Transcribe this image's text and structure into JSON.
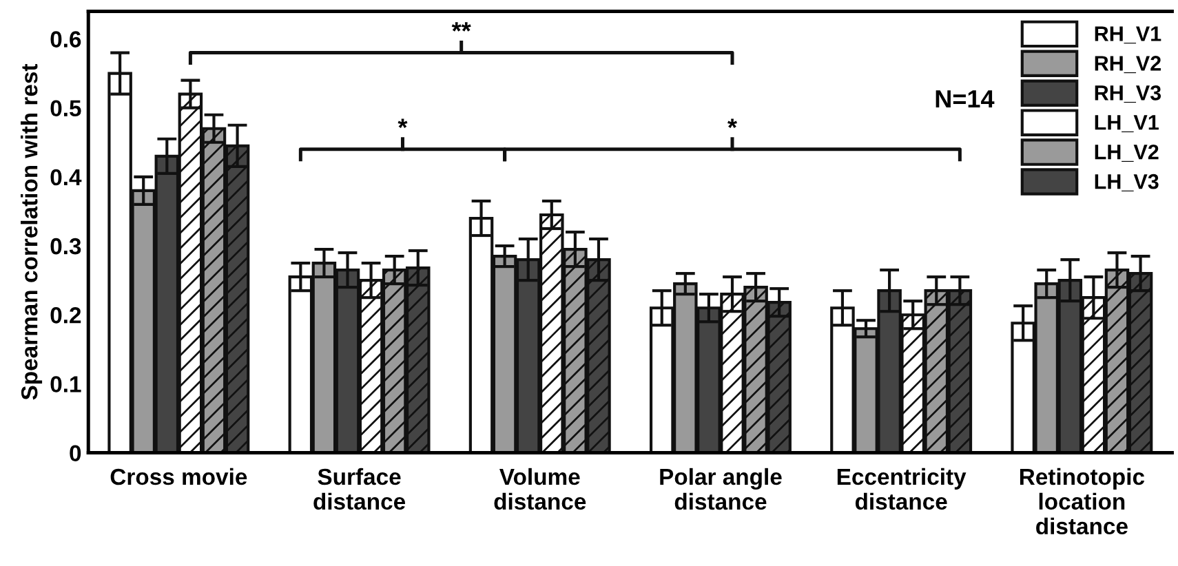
{
  "chart_data": {
    "type": "bar",
    "ylabel": "Spearman correlation with rest",
    "categories": [
      "Cross movie",
      "Surface\ndistance",
      "Volume\ndistance",
      "Polar angle\ndistance",
      "Eccentricity\ndistance",
      "Retinotopic\nlocation\ndistance"
    ],
    "series": [
      {
        "name": "RH_V1",
        "color": "#ffffff",
        "values": [
          0.55,
          0.255,
          0.34,
          0.21,
          0.21,
          0.188
        ],
        "errors": [
          0.03,
          0.02,
          0.025,
          0.025,
          0.025,
          0.025
        ]
      },
      {
        "name": "RH_V2",
        "color": "#9a9a9a",
        "values": [
          0.38,
          0.275,
          0.285,
          0.245,
          0.18,
          0.245
        ],
        "errors": [
          0.02,
          0.02,
          0.015,
          0.015,
          0.012,
          0.02
        ]
      },
      {
        "name": "RH_V3",
        "color": "#444444",
        "values": [
          0.43,
          0.265,
          0.28,
          0.21,
          0.235,
          0.25
        ],
        "errors": [
          0.025,
          0.025,
          0.03,
          0.02,
          0.03,
          0.03
        ]
      },
      {
        "name": "LH_V1",
        "color": "#ffffff",
        "values": [
          0.52,
          0.25,
          0.345,
          0.23,
          0.2,
          0.225
        ],
        "errors": [
          0.02,
          0.025,
          0.02,
          0.025,
          0.02,
          0.03
        ]
      },
      {
        "name": "LH_V2",
        "color": "#9a9a9a",
        "values": [
          0.47,
          0.265,
          0.295,
          0.24,
          0.235,
          0.265
        ],
        "errors": [
          0.02,
          0.02,
          0.025,
          0.02,
          0.02,
          0.025
        ]
      },
      {
        "name": "LH_V3",
        "color": "#444444",
        "values": [
          0.445,
          0.268,
          0.28,
          0.218,
          0.235,
          0.26
        ],
        "errors": [
          0.03,
          0.025,
          0.03,
          0.02,
          0.02,
          0.025
        ]
      }
    ],
    "ylim": [
      0,
      0.64
    ],
    "yticks": [
      0,
      0.1,
      0.2,
      0.3,
      0.4,
      0.5,
      0.6
    ],
    "grid": false,
    "legend": "top right",
    "annotations": [
      "**",
      "*",
      "*",
      "N=14"
    ]
  }
}
